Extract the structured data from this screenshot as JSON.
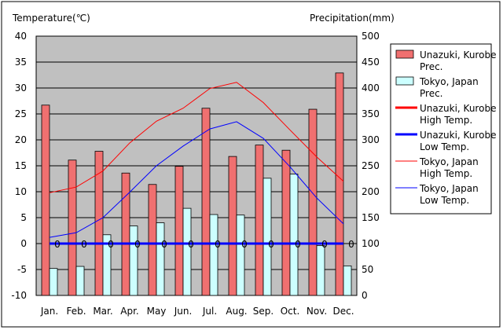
{
  "chart_data": {
    "type": "bar",
    "temp_axis_label": "Temperature(℃)",
    "prec_axis_label": "Precipitation(mm)",
    "categories": [
      "Jan.",
      "Feb.",
      "Mar.",
      "Apr.",
      "May",
      "Jun.",
      "Jul.",
      "Aug.",
      "Sep.",
      "Oct.",
      "Nov.",
      "Dec."
    ],
    "temp_ylim": [
      -10,
      40
    ],
    "temp_ticks": [
      -10,
      -5,
      0,
      5,
      10,
      15,
      20,
      25,
      30,
      35,
      40
    ],
    "prec_ylim": [
      0,
      500
    ],
    "prec_ticks": [
      0,
      50,
      100,
      150,
      200,
      250,
      300,
      350,
      400,
      450,
      500
    ],
    "zero_labels": [
      "0",
      "0",
      "0",
      "0",
      "0",
      "0",
      "0",
      "0",
      "0",
      "0",
      "0",
      "0"
    ],
    "legend_position": "right",
    "series": [
      {
        "name": "Unazuki, Kurobe Prec.",
        "kind": "bar",
        "axis": "precipitation",
        "color": "#f07070",
        "values": [
          367,
          261,
          278,
          236,
          214,
          249,
          361,
          268,
          290,
          280,
          359,
          429
        ]
      },
      {
        "name": "Tokyo, Japan Prec.",
        "kind": "bar",
        "axis": "precipitation",
        "color": "#ccffff",
        "values": [
          52,
          56,
          117,
          134,
          140,
          168,
          156,
          155,
          226,
          234,
          96,
          57
        ]
      },
      {
        "name": "Unazuki, Kurobe High Temp.",
        "kind": "line",
        "axis": "temperature",
        "color": "#ff0000",
        "width": 3,
        "values": [
          0,
          0,
          0,
          0,
          0,
          0,
          0,
          0,
          0,
          0,
          0,
          0
        ]
      },
      {
        "name": "Unazuki, Kurobe Low Temp.",
        "kind": "line",
        "axis": "temperature",
        "color": "#0000ff",
        "width": 3,
        "values": [
          0,
          0,
          0,
          0,
          0,
          0,
          0,
          0,
          0,
          0,
          0,
          0
        ]
      },
      {
        "name": "Tokyo, Japan High Temp.",
        "kind": "line",
        "axis": "temperature",
        "color": "#ff0000",
        "width": 1,
        "values": [
          9.8,
          10.9,
          14.0,
          19.4,
          23.6,
          26.1,
          29.9,
          31.1,
          27.2,
          21.9,
          16.7,
          12.0
        ]
      },
      {
        "name": "Tokyo, Japan Low Temp.",
        "kind": "line",
        "axis": "temperature",
        "color": "#0000ff",
        "width": 1,
        "values": [
          1.2,
          2.1,
          5.0,
          9.9,
          15.0,
          18.8,
          22.1,
          23.5,
          20.3,
          14.8,
          8.8,
          3.8
        ]
      }
    ],
    "legend": [
      {
        "label_1": "Unazuki, Kurobe",
        "label_2": "Prec."
      },
      {
        "label_1": "Tokyo, Japan",
        "label_2": "Prec."
      },
      {
        "label_1": "Unazuki, Kurobe",
        "label_2": "High Temp."
      },
      {
        "label_1": "Unazuki, Kurobe",
        "label_2": "Low Temp."
      },
      {
        "label_1": "Tokyo, Japan",
        "label_2": "High Temp."
      },
      {
        "label_1": "Tokyo, Japan",
        "label_2": "Low Temp."
      }
    ],
    "colors": {
      "plot_background": "#c0c0c0",
      "grid": "#000000"
    }
  }
}
